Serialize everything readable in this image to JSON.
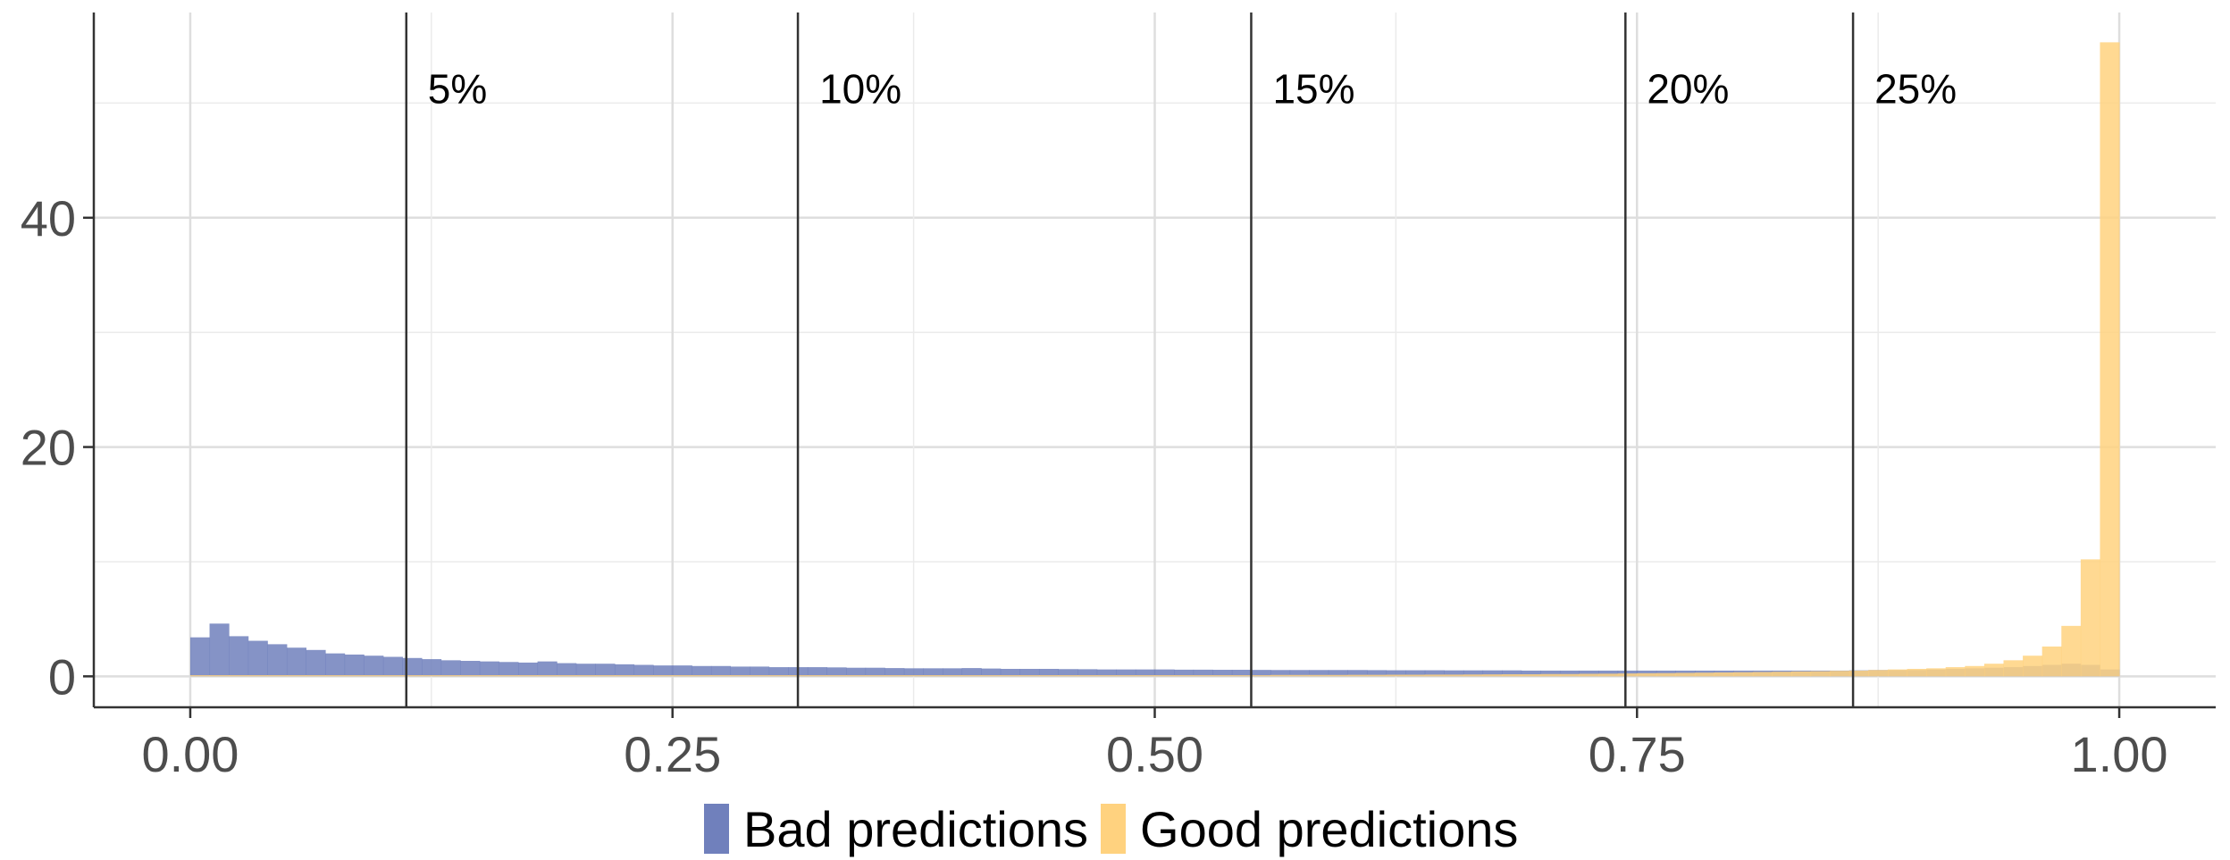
{
  "chart_data": {
    "type": "bar",
    "title": "",
    "xlabel": "",
    "ylabel": "",
    "xlim": [
      -0.05,
      1.05
    ],
    "ylim": [
      -2.7,
      57.9
    ],
    "x_ticks": [
      "0.00",
      "0.25",
      "0.50",
      "0.75",
      "1.00"
    ],
    "x_tick_values": [
      0,
      0.25,
      0.5,
      0.75,
      1.0
    ],
    "y_ticks": [
      "0",
      "20",
      "40"
    ],
    "y_tick_values": [
      0,
      20,
      40
    ],
    "grid": true,
    "legend_position": "bottom",
    "bin_width": 0.01,
    "x": [
      0.005,
      0.015,
      0.025,
      0.035,
      0.045,
      0.055,
      0.065,
      0.075,
      0.085,
      0.095,
      0.105,
      0.115,
      0.125,
      0.135,
      0.145,
      0.155,
      0.165,
      0.175,
      0.185,
      0.195,
      0.205,
      0.215,
      0.225,
      0.235,
      0.245,
      0.255,
      0.265,
      0.275,
      0.285,
      0.295,
      0.305,
      0.315,
      0.325,
      0.335,
      0.345,
      0.355,
      0.365,
      0.375,
      0.385,
      0.395,
      0.405,
      0.415,
      0.425,
      0.435,
      0.445,
      0.455,
      0.465,
      0.475,
      0.485,
      0.495,
      0.505,
      0.515,
      0.525,
      0.535,
      0.545,
      0.555,
      0.565,
      0.575,
      0.585,
      0.595,
      0.605,
      0.615,
      0.625,
      0.635,
      0.645,
      0.655,
      0.665,
      0.675,
      0.685,
      0.695,
      0.705,
      0.715,
      0.725,
      0.735,
      0.745,
      0.755,
      0.765,
      0.775,
      0.785,
      0.795,
      0.805,
      0.815,
      0.825,
      0.835,
      0.845,
      0.855,
      0.865,
      0.875,
      0.885,
      0.895,
      0.905,
      0.915,
      0.925,
      0.935,
      0.945,
      0.955,
      0.965,
      0.975,
      0.985,
      0.995
    ],
    "series": [
      {
        "name": "Bad predictions",
        "color": "#7080BC",
        "values": [
          3.4,
          4.6,
          3.5,
          3.1,
          2.8,
          2.5,
          2.3,
          2.0,
          1.9,
          1.8,
          1.7,
          1.6,
          1.5,
          1.4,
          1.35,
          1.3,
          1.25,
          1.2,
          1.3,
          1.15,
          1.1,
          1.1,
          1.05,
          1.0,
          0.95,
          0.95,
          0.9,
          0.9,
          0.85,
          0.85,
          0.8,
          0.8,
          0.8,
          0.78,
          0.75,
          0.75,
          0.72,
          0.7,
          0.7,
          0.7,
          0.72,
          0.68,
          0.65,
          0.65,
          0.65,
          0.63,
          0.62,
          0.6,
          0.6,
          0.6,
          0.6,
          0.58,
          0.58,
          0.57,
          0.57,
          0.56,
          0.55,
          0.55,
          0.55,
          0.55,
          0.55,
          0.54,
          0.53,
          0.53,
          0.53,
          0.52,
          0.52,
          0.52,
          0.52,
          0.5,
          0.5,
          0.5,
          0.5,
          0.5,
          0.5,
          0.5,
          0.5,
          0.5,
          0.5,
          0.5,
          0.5,
          0.5,
          0.5,
          0.5,
          0.5,
          0.5,
          0.52,
          0.55,
          0.55,
          0.55,
          0.6,
          0.65,
          0.7,
          0.75,
          0.8,
          0.9,
          1.0,
          1.1,
          1.0,
          0.6
        ]
      },
      {
        "name": "Good predictions",
        "color": "#FFD27F",
        "values": [
          0.1,
          0.1,
          0.1,
          0.1,
          0.1,
          0.1,
          0.1,
          0.1,
          0.1,
          0.1,
          0.1,
          0.1,
          0.1,
          0.1,
          0.1,
          0.1,
          0.1,
          0.1,
          0.1,
          0.1,
          0.1,
          0.1,
          0.1,
          0.1,
          0.1,
          0.1,
          0.1,
          0.1,
          0.1,
          0.1,
          0.1,
          0.1,
          0.1,
          0.1,
          0.1,
          0.1,
          0.1,
          0.1,
          0.1,
          0.1,
          0.1,
          0.1,
          0.1,
          0.1,
          0.1,
          0.1,
          0.1,
          0.1,
          0.1,
          0.1,
          0.1,
          0.1,
          0.1,
          0.1,
          0.1,
          0.1,
          0.12,
          0.12,
          0.12,
          0.12,
          0.13,
          0.13,
          0.14,
          0.14,
          0.15,
          0.15,
          0.16,
          0.17,
          0.18,
          0.18,
          0.2,
          0.2,
          0.22,
          0.23,
          0.25,
          0.27,
          0.28,
          0.3,
          0.32,
          0.34,
          0.36,
          0.38,
          0.4,
          0.43,
          0.45,
          0.48,
          0.5,
          0.55,
          0.6,
          0.65,
          0.7,
          0.8,
          0.9,
          1.1,
          1.4,
          1.8,
          2.6,
          4.4,
          10.2,
          55.3
        ]
      }
    ],
    "vlines": [
      {
        "x": 0.112,
        "label": "5%"
      },
      {
        "x": 0.315,
        "label": "10%"
      },
      {
        "x": 0.55,
        "label": "15%"
      },
      {
        "x": 0.744,
        "label": "20%"
      },
      {
        "x": 0.862,
        "label": "25%"
      }
    ]
  }
}
